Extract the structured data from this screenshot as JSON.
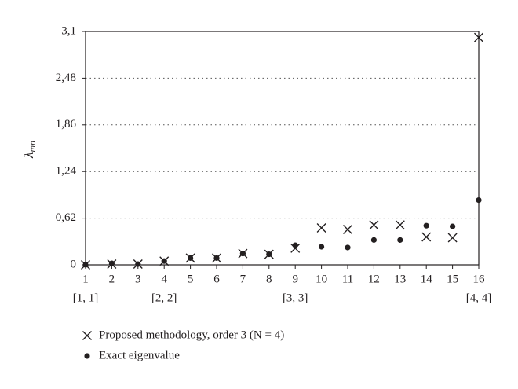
{
  "chart_data": {
    "type": "scatter",
    "ylabel": {
      "symbol": "λ",
      "subscript": "mn"
    },
    "x": [
      1,
      2,
      3,
      4,
      5,
      6,
      7,
      8,
      9,
      10,
      11,
      12,
      13,
      14,
      15,
      16
    ],
    "xlim": [
      1,
      16
    ],
    "xticks": [
      1,
      2,
      3,
      4,
      5,
      6,
      7,
      8,
      9,
      10,
      11,
      12,
      13,
      14,
      15,
      16
    ],
    "x_annotations": [
      {
        "value": 1,
        "label": "[1, 1]"
      },
      {
        "value": 4,
        "label": "[2, 2]"
      },
      {
        "value": 9,
        "label": "[3, 3]"
      },
      {
        "value": 16,
        "label": "[4, 4]"
      }
    ],
    "ylim": [
      0,
      3.1
    ],
    "yticks": [
      0,
      {
        "value": 0.62,
        "label": "0,62"
      },
      {
        "value": 1.24,
        "label": "1,24"
      },
      {
        "value": 1.86,
        "label": "1,86"
      },
      {
        "value": 2.48,
        "label": "2,48"
      },
      {
        "value": 3.1,
        "label": "3,1"
      }
    ],
    "grid": true,
    "series": [
      {
        "name": "Proposed methodology, order 3 (N = 4)",
        "marker": "cross",
        "color": "#231f20",
        "values": [
          0,
          0.01,
          0.01,
          0.05,
          0.09,
          0.09,
          0.15,
          0.14,
          0.22,
          0.49,
          0.47,
          0.53,
          0.53,
          0.37,
          0.36,
          3.02
        ]
      },
      {
        "name": "Exact eigenvalue",
        "marker": "dot",
        "color": "#231f20",
        "values": [
          0,
          0.02,
          0.01,
          0.05,
          0.09,
          0.09,
          0.15,
          0.14,
          0.26,
          0.24,
          0.23,
          0.33,
          0.33,
          0.52,
          0.51,
          0.86
        ]
      }
    ]
  }
}
